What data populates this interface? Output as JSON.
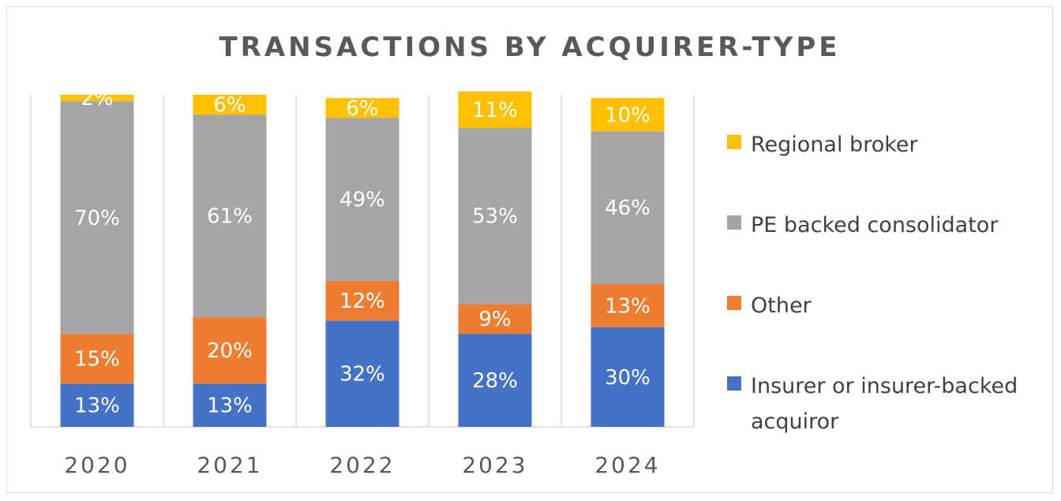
{
  "chart_data": {
    "type": "bar",
    "stacked": true,
    "title": "TRANSACTIONS BY ACQUIRER-TYPE",
    "xlabel": "",
    "ylabel": "",
    "ylim": [
      0,
      100
    ],
    "grid": "vertical-category-dividers",
    "legend_position": "right",
    "categories": [
      "2020",
      "2021",
      "2022",
      "2023",
      "2024"
    ],
    "series": [
      {
        "name": "Insurer or insurer-backed acquiror",
        "color": "#4472c4",
        "values": [
          13,
          13,
          32,
          28,
          30
        ],
        "labels": [
          "13%",
          "13%",
          "32%",
          "28%",
          "30%"
        ]
      },
      {
        "name": "Other",
        "color": "#ed7d31",
        "values": [
          15,
          20,
          12,
          9,
          13
        ],
        "labels": [
          "15%",
          "20%",
          "12%",
          "9%",
          "13%"
        ]
      },
      {
        "name": "PE backed consolidator",
        "color": "#a5a5a5",
        "values": [
          70,
          61,
          49,
          53,
          46
        ],
        "labels": [
          "70%",
          "61%",
          "49%",
          "53%",
          "46%"
        ]
      },
      {
        "name": "Regional broker",
        "color": "#ffc000",
        "values": [
          2,
          6,
          6,
          11,
          10
        ],
        "labels": [
          "2%",
          "6%",
          "6%",
          "11%",
          "10%"
        ]
      }
    ],
    "legend_order": [
      "Regional broker",
      "PE backed consolidator",
      "Other",
      "Insurer or insurer-backed acquiror"
    ]
  }
}
